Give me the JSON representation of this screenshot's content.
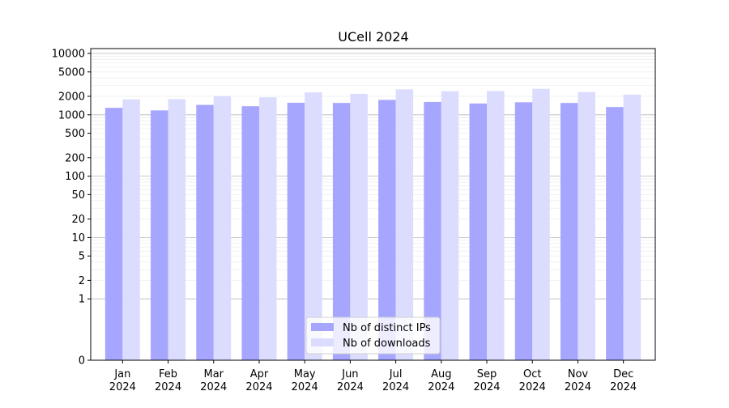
{
  "chart_data": {
    "type": "bar",
    "title": "UCell 2024",
    "xlabel": "",
    "ylabel": "",
    "yscale": "symlog",
    "ylim": [
      0,
      12000
    ],
    "y_ticks": [
      "0",
      "1",
      "2",
      "5",
      "10",
      "20",
      "50",
      "100",
      "200",
      "500",
      "1000",
      "2000",
      "5000",
      "10000"
    ],
    "categories": [
      "Jan\n2024",
      "Feb\n2024",
      "Mar\n2024",
      "Apr\n2024",
      "May\n2024",
      "Jun\n2024",
      "Jul\n2024",
      "Aug\n2024",
      "Sep\n2024",
      "Oct\n2024",
      "Nov\n2024",
      "Dec\n2024"
    ],
    "series": [
      {
        "name": "Nb of distinct IPs",
        "color": "#a6a6ff",
        "values": [
          1300,
          1180,
          1450,
          1380,
          1570,
          1560,
          1750,
          1620,
          1530,
          1600,
          1560,
          1340
        ]
      },
      {
        "name": "Nb of downloads",
        "color": "#dcdcff",
        "values": [
          1780,
          1800,
          2020,
          1930,
          2320,
          2200,
          2600,
          2420,
          2430,
          2650,
          2350,
          2130
        ]
      }
    ],
    "grid": true,
    "legend_position": "lower-center"
  }
}
